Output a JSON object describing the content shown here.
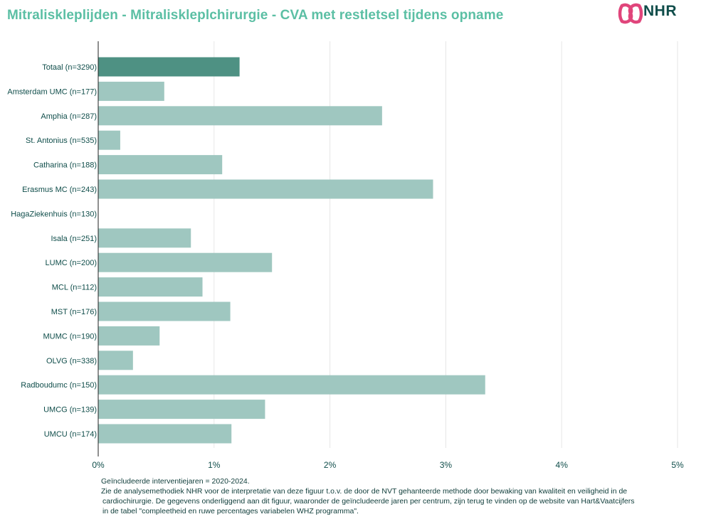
{
  "title": "Mitraliskleplijden - Mitraliskleplchirurgie - CVA met restletsel tijdens opname",
  "logo": {
    "text": "NHR",
    "mark_color": "#e0457b"
  },
  "colors": {
    "bar_total": "#4e9183",
    "bar_center": "#9fc7c0",
    "axis_text": "#0f4d4a",
    "grid": "#e6e6e6"
  },
  "chart_data": {
    "type": "bar",
    "orientation": "horizontal",
    "categories": [
      "Totaal (n=3290)",
      "Amsterdam UMC (n=177)",
      "Amphia (n=287)",
      "St. Antonius (n=535)",
      "Catharina (n=188)",
      "Erasmus MC (n=243)",
      "HagaZiekenhuis (n=130)",
      "Isala (n=251)",
      "LUMC (n=200)",
      "MCL (n=112)",
      "MST (n=176)",
      "MUMC (n=190)",
      "OLVG (n=338)",
      "Radboudumc (n=150)",
      "UMCG (n=139)",
      "UMCU (n=174)"
    ],
    "values": [
      1.22,
      0.57,
      2.45,
      0.19,
      1.07,
      2.89,
      0,
      0.8,
      1.5,
      0.9,
      1.14,
      0.53,
      0.3,
      3.34,
      1.44,
      1.15
    ],
    "highlight_index": 0,
    "xlim": [
      0,
      5
    ],
    "xticks": [
      0,
      1,
      2,
      3,
      4,
      5
    ],
    "xtick_labels": [
      "0%",
      "1%",
      "2%",
      "3%",
      "4%",
      "5%"
    ],
    "grid": "vertical",
    "xlabel": "",
    "ylabel": ""
  },
  "footnote": {
    "line1": "Geïncludeerde interventiejaren = 2020-2024.",
    "line2": "Zie de analysemethodiek NHR voor de interpretatie van deze figuur t.o.v. de door de NVT gehanteerde methode door bewaking van kwaliteit en veiligheid in de",
    "line3": "cardiochirurgie. De gegevens onderliggend aan dit figuur, waaronder de geïncludeerde jaren per centrum, zijn terug te vinden op de website van Hart&Vaatcijfers",
    "line4": "in de tabel \"compleetheid en ruwe percentages variabelen WHZ programma\"."
  }
}
